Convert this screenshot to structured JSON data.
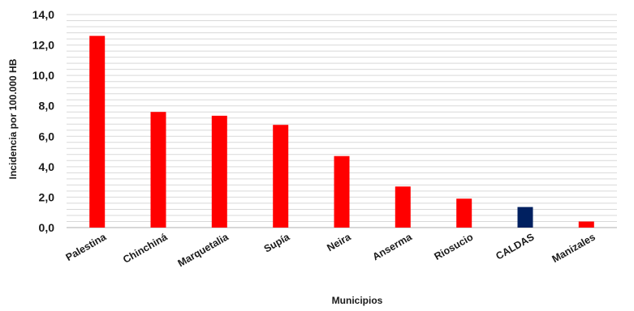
{
  "chart_data": {
    "type": "bar",
    "categories": [
      "Palestina",
      "Chinchiná",
      "Marquetalia",
      "Supía",
      "Neira",
      "Anserma",
      "Riosucio",
      "CALDAS",
      "Manizales"
    ],
    "values": [
      12.6,
      7.6,
      7.35,
      6.75,
      4.7,
      2.7,
      1.9,
      1.35,
      0.4
    ],
    "bar_colors": [
      "#ff0000",
      "#ff0000",
      "#ff0000",
      "#ff0000",
      "#ff0000",
      "#ff0000",
      "#ff0000",
      "#002060",
      "#ff0000"
    ],
    "title": "",
    "xlabel": "Municipios",
    "ylabel": "Incidencia  por 100.000 HB",
    "ylim": [
      0,
      14
    ],
    "y_ticks": [
      0,
      2,
      4,
      6,
      8,
      10,
      12,
      14
    ],
    "y_tick_labels": [
      "0,0",
      "2,0",
      "4,0",
      "6,0",
      "8,0",
      "10,0",
      "12,0",
      "14,0"
    ],
    "grid": true,
    "legend": "none"
  }
}
